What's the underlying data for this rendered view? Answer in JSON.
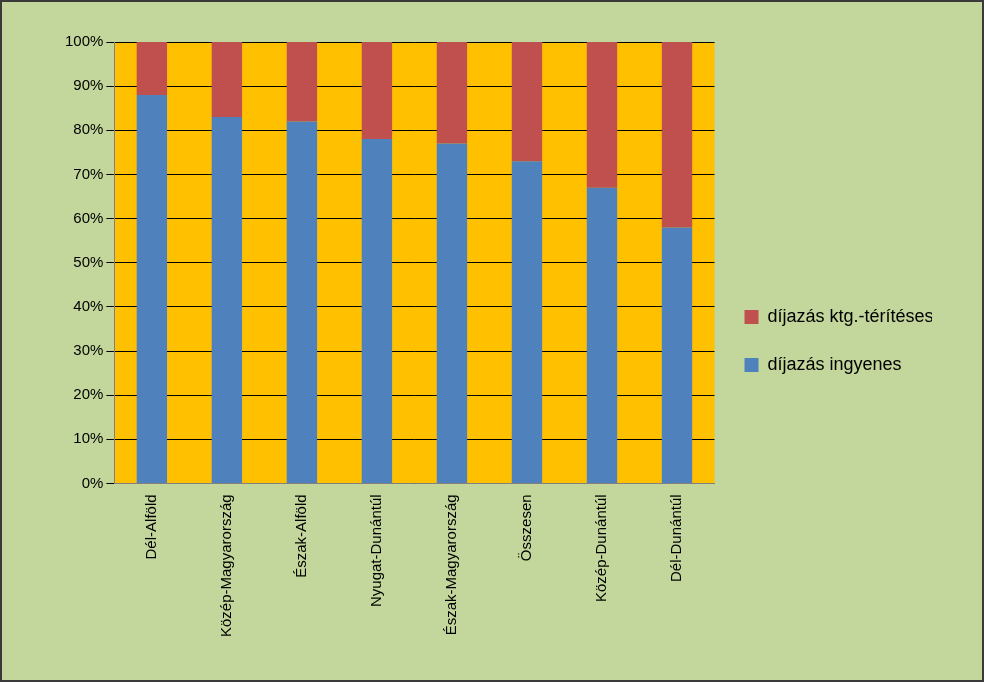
{
  "chart_data": {
    "type": "bar",
    "stacked": true,
    "categories": [
      "Dél-Alföld",
      "Közép-Magyarország",
      "Észak-Alföld",
      "Nyugat-Dunántúl",
      "Észak-Magyarország",
      "Összesen",
      "Közép-Dunántúl",
      "Dél-Dunántúl"
    ],
    "series": [
      {
        "name": "díjazás ingyenes",
        "color": "#4f81bd",
        "values": [
          88,
          83,
          82,
          78,
          77,
          73,
          67,
          58
        ]
      },
      {
        "name": "díjazás ktg.-térítéses",
        "color": "#c0504d",
        "values": [
          12,
          17,
          18,
          22,
          23,
          27,
          33,
          42
        ]
      }
    ],
    "ylim": [
      0,
      100
    ],
    "yticks": [
      {
        "value": 0,
        "label": "0%"
      },
      {
        "value": 10,
        "label": "10%"
      },
      {
        "value": 20,
        "label": "20%"
      },
      {
        "value": 30,
        "label": "30%"
      },
      {
        "value": 40,
        "label": "40%"
      },
      {
        "value": 50,
        "label": "50%"
      },
      {
        "value": 60,
        "label": "60%"
      },
      {
        "value": 70,
        "label": "70%"
      },
      {
        "value": 80,
        "label": "80%"
      },
      {
        "value": 90,
        "label": "90%"
      },
      {
        "value": 100,
        "label": "100%"
      }
    ],
    "grid": true,
    "legend": "right"
  }
}
